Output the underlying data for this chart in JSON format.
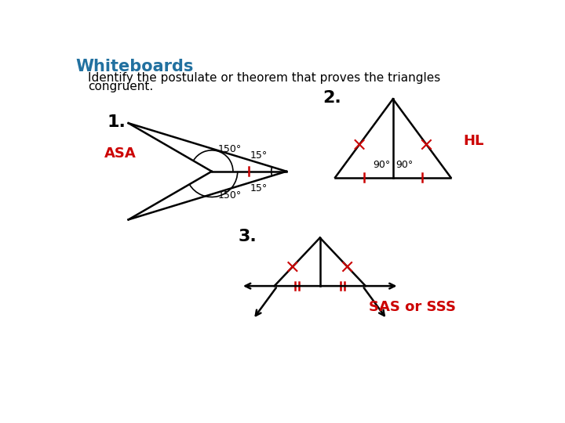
{
  "title": "Whiteboards",
  "title_color": "#2271a0",
  "subtitle_line1": "Identify the postulate or theorem that proves the triangles",
  "subtitle_line2": "congruent.",
  "background_color": "#ffffff",
  "answer_color": "#cc0000",
  "black": "#000000"
}
